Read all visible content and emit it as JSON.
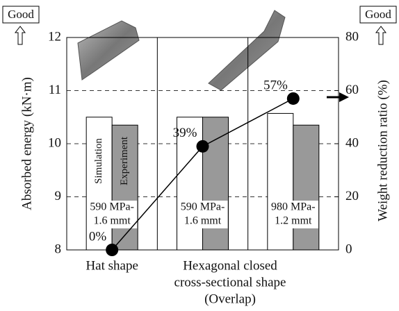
{
  "chart_data": {
    "type": "bar_line",
    "y_label": "Absorbed energy (kN·m)",
    "y2_label": "Weight reduction ratio (%)",
    "categories": [
      [
        "590 MPa-",
        "1.6 mmt"
      ],
      [
        "590 MPa-",
        "1.6 mmt"
      ],
      [
        "980 MPa-",
        "1.2 mmt"
      ]
    ],
    "series": [
      {
        "name": "Simulation",
        "color": "#ffffff",
        "values": [
          10.5,
          10.5,
          10.57
        ]
      },
      {
        "name": "Experiment",
        "color": "#999999",
        "values": [
          10.35,
          10.5,
          10.35
        ]
      },
      {
        "type": "line",
        "axis": "y2",
        "color": "#000000",
        "values": [
          0,
          39,
          57
        ],
        "value_labels": [
          "0%",
          "39%",
          "57%"
        ]
      }
    ],
    "ylim": [
      8,
      12
    ],
    "yticks": [
      8,
      9,
      10,
      11,
      12
    ],
    "y2lim": [
      0,
      80
    ],
    "y2ticks": [
      0,
      20,
      40,
      60,
      80
    ],
    "grid": true,
    "annotations": {
      "good_left": "Good",
      "good_right": "Good",
      "hat": "Hat shape",
      "hexagonal": [
        "Hexagonal closed",
        "cross-sectional shape",
        "(Overlap)"
      ]
    }
  }
}
